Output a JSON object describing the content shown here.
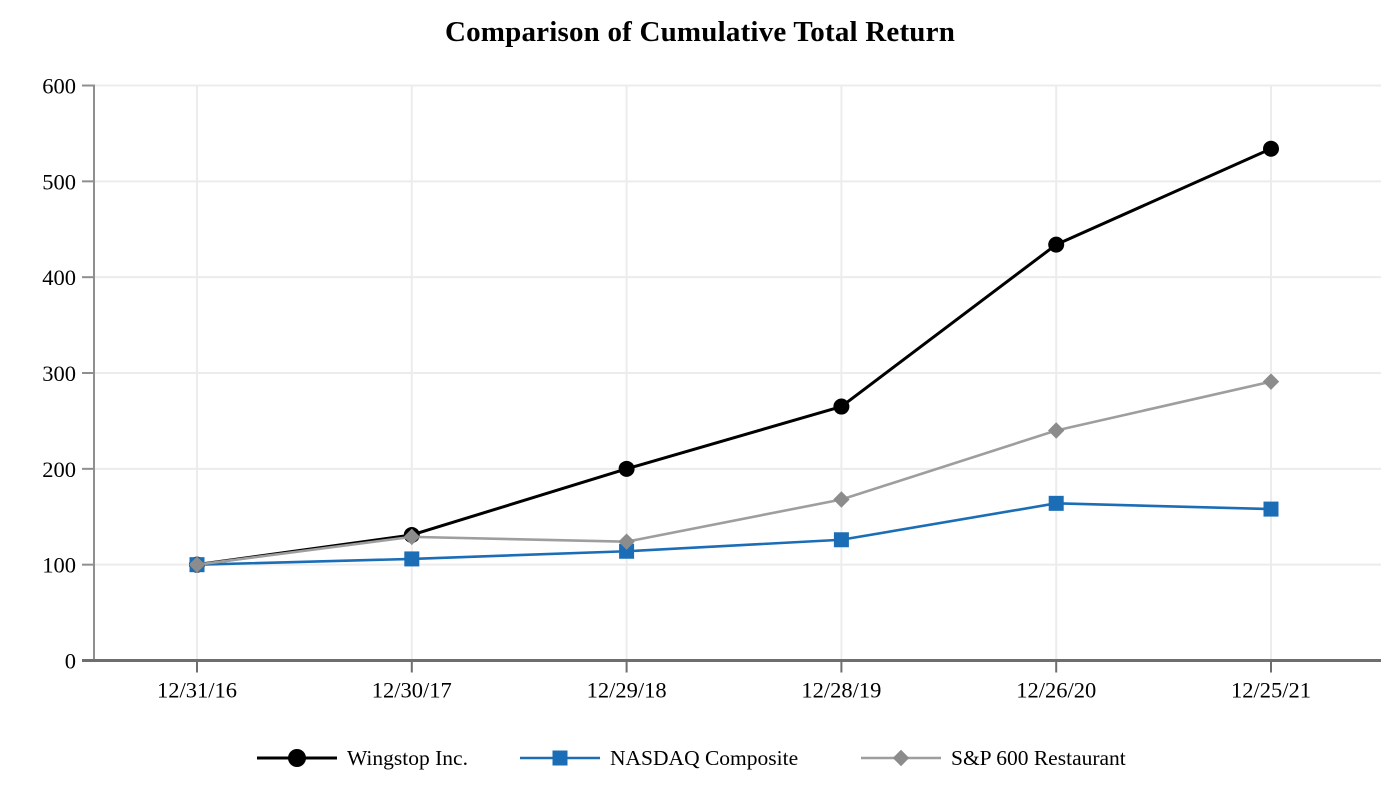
{
  "title": "Comparison of Cumulative Total Return",
  "chart_data": {
    "type": "line",
    "title": "Comparison of Cumulative Total Return",
    "categories": [
      "12/31/16",
      "12/30/17",
      "12/29/18",
      "12/28/19",
      "12/26/20",
      "12/25/21"
    ],
    "series": [
      {
        "name": "Wingstop Inc.",
        "marker": "circle",
        "line_color": "#000000",
        "marker_color": "#000000",
        "values": [
          100,
          131,
          200,
          265,
          434,
          534
        ]
      },
      {
        "name": "NASDAQ Composite",
        "marker": "square",
        "line_color": "#1b6db6",
        "marker_color": "#1b6db6",
        "values": [
          100,
          106,
          114,
          126,
          164,
          158
        ]
      },
      {
        "name": "S&P 600 Restaurant",
        "marker": "diamond",
        "line_color": "#9e9e9e",
        "marker_color": "#8c8c8c",
        "values": [
          100,
          129,
          124,
          168,
          240,
          291
        ]
      }
    ],
    "xlabel": "",
    "ylabel": "",
    "ylim": [
      0,
      600
    ],
    "yticks": [
      0,
      100,
      200,
      300,
      400,
      500,
      600
    ],
    "grid": true,
    "legend_position": "bottom"
  },
  "colors": {
    "gridline": "#ececec",
    "y_axis": "#8f8f8f",
    "x_axis": "#6e6e6e",
    "text": "#000000",
    "background": "#ffffff"
  }
}
